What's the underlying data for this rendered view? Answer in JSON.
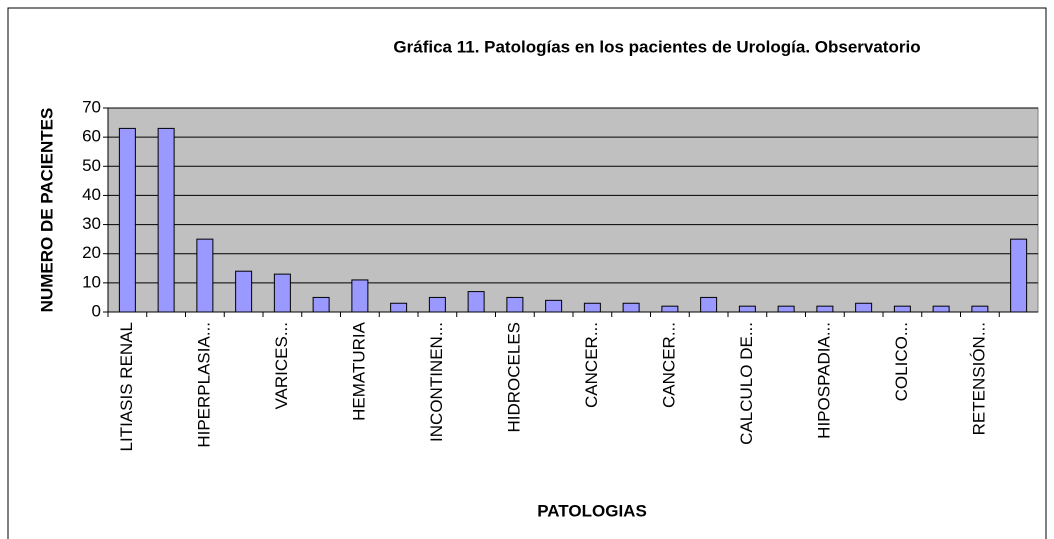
{
  "chart_data": {
    "type": "bar",
    "title": "Gráfica 11.  Patologías en los pacientes de Urología. Observatorio",
    "y_label": "NUMERO DE PACIENTES",
    "x_label": "PATOLOGIAS",
    "categories": [
      "LITIASIS RENAL",
      null,
      "HIPERPLASIA...",
      null,
      "VARICES...",
      null,
      "HEMATURIA",
      null,
      "INCONTINEN...",
      null,
      "HIDROCELES",
      null,
      "CANCER...",
      null,
      "CANCER...",
      null,
      "CALCULO DE...",
      null,
      "HIPOSPADIA...",
      null,
      "COLICO...",
      null,
      "RETENSIÓN...",
      null
    ],
    "values": [
      63,
      63,
      25,
      14,
      13,
      5,
      11,
      3,
      5,
      7,
      5,
      4,
      3,
      3,
      2,
      5,
      2,
      2,
      2,
      3,
      2,
      2,
      2,
      25
    ],
    "color": "#9999ff",
    "plot_background": "#c0c0c0",
    "ylim": [
      0,
      70
    ],
    "yticks": [
      0,
      10,
      20,
      30,
      40,
      50,
      60,
      70
    ],
    "grid": true
  }
}
